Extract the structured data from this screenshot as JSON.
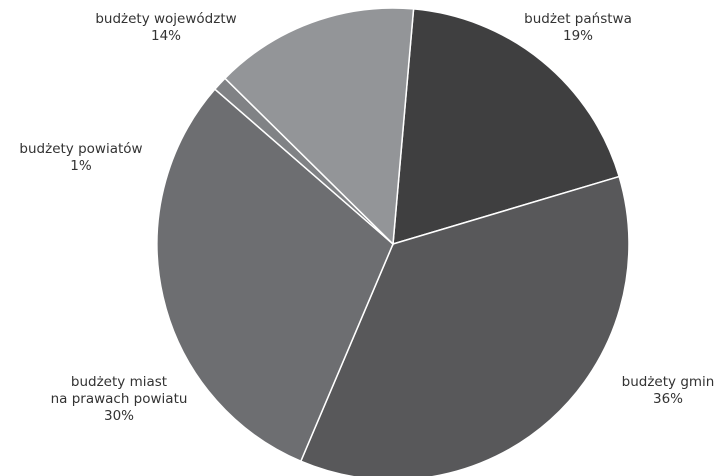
{
  "chart_data": {
    "type": "pie",
    "title": "",
    "start_angle_deg": 5,
    "direction": "clockwise",
    "slices": [
      {
        "id": "budzet-panstwa",
        "label_lines": [
          "budżet państwa"
        ],
        "percent_label": "19%",
        "value": 19,
        "color": "#3f3f40"
      },
      {
        "id": "budzety-gmin",
        "label_lines": [
          "budżety gmin"
        ],
        "percent_label": "36%",
        "value": 36,
        "color": "#58585a"
      },
      {
        "id": "budzety-miast-na-prawach-powiatu",
        "label_lines": [
          "budżety miast",
          "na prawach powiatu"
        ],
        "percent_label": "30%",
        "value": 30,
        "color": "#6d6e71"
      },
      {
        "id": "budzety-powiatow",
        "label_lines": [
          "budżety powiatów"
        ],
        "percent_label": "1%",
        "value": 1,
        "color": "#808285"
      },
      {
        "id": "budzety-wojewodztw",
        "label_lines": [
          "budżety województw"
        ],
        "percent_label": "14%",
        "value": 14,
        "color": "#939598"
      }
    ]
  }
}
